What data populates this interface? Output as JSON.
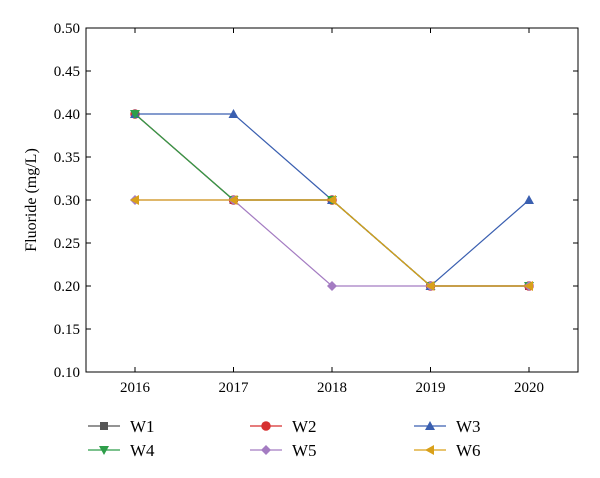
{
  "chart_data": {
    "type": "line",
    "xlabel": "",
    "ylabel": "Fluoride (mg/L)",
    "categories": [
      "2016",
      "2017",
      "2018",
      "2019",
      "2020"
    ],
    "ylim": [
      0.1,
      0.5
    ],
    "yticks": [
      "0.10",
      "0.15",
      "0.20",
      "0.25",
      "0.30",
      "0.35",
      "0.40",
      "0.45",
      "0.50"
    ],
    "grid": false,
    "legend_position": "bottom",
    "series": [
      {
        "name": "W1",
        "values": [
          0.4,
          0.3,
          0.3,
          0.2,
          0.2
        ],
        "color": "#555555",
        "marker": "square"
      },
      {
        "name": "W2",
        "values": [
          0.4,
          0.3,
          0.3,
          0.2,
          0.2
        ],
        "color": "#d62f2f",
        "marker": "circle"
      },
      {
        "name": "W3",
        "values": [
          0.4,
          0.4,
          0.3,
          0.2,
          0.3
        ],
        "color": "#3a5fb0",
        "marker": "triangle-up"
      },
      {
        "name": "W4",
        "values": [
          0.4,
          0.3,
          0.3,
          0.2,
          0.2
        ],
        "color": "#2e9e4a",
        "marker": "triangle-down"
      },
      {
        "name": "W5",
        "values": [
          0.3,
          0.3,
          0.2,
          0.2,
          0.2
        ],
        "color": "#a47cc2",
        "marker": "diamond"
      },
      {
        "name": "W6",
        "values": [
          0.3,
          0.3,
          0.3,
          0.2,
          0.2
        ],
        "color": "#d9a019",
        "marker": "triangle-left"
      }
    ]
  }
}
